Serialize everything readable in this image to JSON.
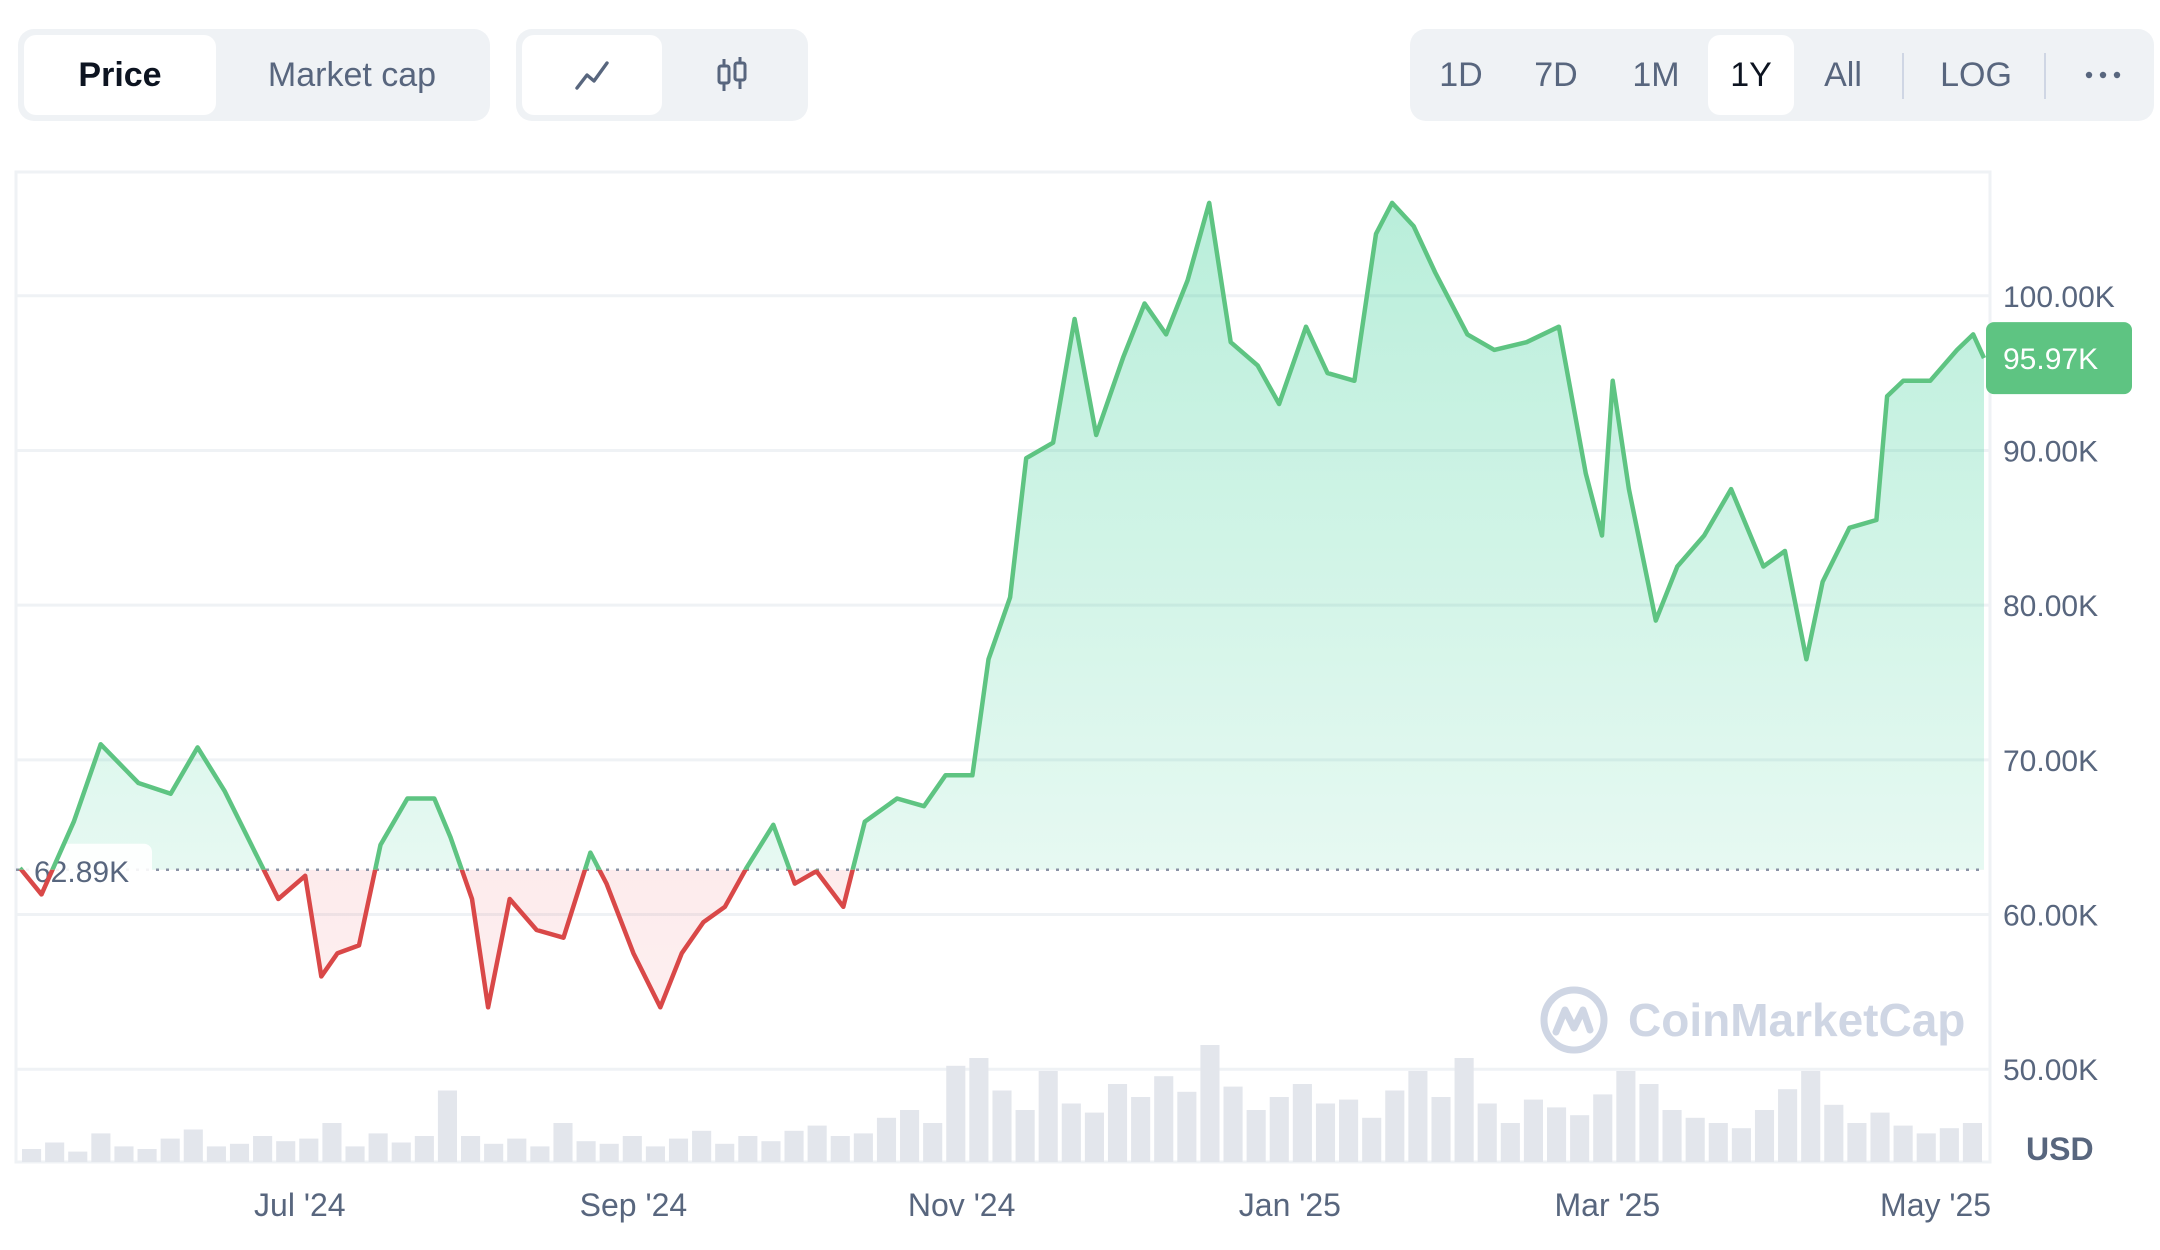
{
  "metric_tabs": [
    {
      "label": "Price",
      "active": true
    },
    {
      "label": "Market cap",
      "active": false
    }
  ],
  "chart_type_tabs": [
    {
      "icon": "line-chart-icon",
      "active": true
    },
    {
      "icon": "candlestick-icon",
      "active": false
    }
  ],
  "range_tabs": [
    {
      "label": "1D",
      "active": false
    },
    {
      "label": "7D",
      "active": false
    },
    {
      "label": "1M",
      "active": false
    },
    {
      "label": "1Y",
      "active": true
    },
    {
      "label": "All",
      "active": false
    }
  ],
  "scale_toggle": "LOG",
  "more_icon": "more-horizontal-icon",
  "watermark": "CoinMarketCap",
  "colors": {
    "up": "#16c784",
    "up_line": "#5ec482",
    "down_line": "#d94848",
    "up_fill": "#d6f1e0",
    "down_fill": "#f6d4d4",
    "grid": "#eff2f5",
    "volume": "#e3e6ec"
  },
  "chart_data": {
    "type": "area",
    "x": [
      "2024-05-10",
      "2024-05-14",
      "2024-05-20",
      "2024-05-25",
      "2024-06-01",
      "2024-06-07",
      "2024-06-12",
      "2024-06-17",
      "2024-06-22",
      "2024-06-27",
      "2024-07-02",
      "2024-07-05",
      "2024-07-08",
      "2024-07-12",
      "2024-07-16",
      "2024-07-21",
      "2024-07-26",
      "2024-07-29",
      "2024-08-02",
      "2024-08-05",
      "2024-08-09",
      "2024-08-14",
      "2024-08-19",
      "2024-08-24",
      "2024-08-27",
      "2024-09-01",
      "2024-09-06",
      "2024-09-10",
      "2024-09-14",
      "2024-09-18",
      "2024-09-22",
      "2024-09-27",
      "2024-10-01",
      "2024-10-05",
      "2024-10-10",
      "2024-10-14",
      "2024-10-20",
      "2024-10-25",
      "2024-10-29",
      "2024-11-03",
      "2024-11-06",
      "2024-11-10",
      "2024-11-13",
      "2024-11-18",
      "2024-11-22",
      "2024-11-26",
      "2024-12-01",
      "2024-12-05",
      "2024-12-09",
      "2024-12-13",
      "2024-12-17",
      "2024-12-21",
      "2024-12-26",
      "2024-12-30",
      "2025-01-04",
      "2025-01-08",
      "2025-01-13",
      "2025-01-17",
      "2025-01-20",
      "2025-01-24",
      "2025-01-28",
      "2025-02-03",
      "2025-02-08",
      "2025-02-14",
      "2025-02-20",
      "2025-02-25",
      "2025-02-28",
      "2025-03-02",
      "2025-03-05",
      "2025-03-10",
      "2025-03-14",
      "2025-03-19",
      "2025-03-24",
      "2025-03-30",
      "2025-04-03",
      "2025-04-07",
      "2025-04-10",
      "2025-04-15",
      "2025-04-20",
      "2025-04-22",
      "2025-04-25",
      "2025-04-30",
      "2025-05-05",
      "2025-05-08",
      "2025-05-10"
    ],
    "y": [
      63.0,
      61.3,
      66.0,
      71.0,
      68.5,
      67.8,
      70.8,
      68.0,
      64.5,
      61.0,
      62.5,
      56.0,
      57.5,
      58.0,
      64.5,
      67.5,
      67.5,
      65.0,
      61.0,
      54.0,
      61.0,
      59.0,
      58.5,
      64.0,
      62.0,
      57.5,
      54.0,
      57.5,
      59.5,
      60.5,
      63.0,
      65.8,
      62.0,
      62.8,
      60.5,
      66.0,
      67.5,
      67.0,
      69.0,
      69.0,
      76.5,
      80.5,
      89.5,
      90.5,
      98.5,
      91.0,
      96.0,
      99.5,
      97.5,
      101.0,
      106.0,
      97.0,
      95.5,
      93.0,
      98.0,
      95.0,
      94.5,
      104.0,
      106.0,
      104.5,
      101.5,
      97.5,
      96.5,
      97.0,
      98.0,
      88.5,
      84.5,
      94.5,
      87.5,
      79.0,
      82.5,
      84.5,
      87.5,
      82.5,
      83.5,
      76.5,
      81.5,
      85.0,
      85.5,
      93.5,
      94.5,
      94.5,
      96.5,
      97.5,
      95.97
    ],
    "xlabel": "",
    "ylabel": "",
    "ylim": [
      44,
      108
    ],
    "y_ticks": [
      "100.00K",
      "90.00K",
      "80.00K",
      "70.00K",
      "60.00K",
      "50.00K"
    ],
    "y_tick_values": [
      100,
      90,
      80,
      70,
      60,
      50
    ],
    "x_ticks": [
      "Jul '24",
      "Sep '24",
      "Nov '24",
      "Jan '25",
      "Mar '25",
      "May '25"
    ],
    "x_tick_dates": [
      "2024-07-01",
      "2024-09-01",
      "2024-11-01",
      "2025-01-01",
      "2025-03-01",
      "2025-05-01"
    ],
    "baseline_value": 62.89,
    "baseline_label": "62.89K",
    "current_value": 95.97,
    "current_label": "95.97K",
    "unit": "USD",
    "volume_relative": [
      0.1,
      0.15,
      0.08,
      0.22,
      0.12,
      0.1,
      0.18,
      0.25,
      0.12,
      0.14,
      0.2,
      0.16,
      0.18,
      0.3,
      0.12,
      0.22,
      0.15,
      0.2,
      0.55,
      0.2,
      0.14,
      0.18,
      0.12,
      0.3,
      0.16,
      0.14,
      0.2,
      0.12,
      0.18,
      0.24,
      0.14,
      0.2,
      0.16,
      0.24,
      0.28,
      0.2,
      0.22,
      0.34,
      0.4,
      0.3,
      0.74,
      0.8,
      0.55,
      0.4,
      0.7,
      0.45,
      0.38,
      0.6,
      0.5,
      0.66,
      0.54,
      0.9,
      0.58,
      0.4,
      0.5,
      0.6,
      0.45,
      0.48,
      0.34,
      0.55,
      0.7,
      0.5,
      0.8,
      0.45,
      0.3,
      0.48,
      0.42,
      0.36,
      0.52,
      0.7,
      0.6,
      0.4,
      0.34,
      0.3,
      0.26,
      0.4,
      0.56,
      0.7,
      0.44,
      0.3,
      0.38,
      0.28,
      0.22,
      0.26,
      0.3
    ],
    "grid": true,
    "legend": "none"
  }
}
